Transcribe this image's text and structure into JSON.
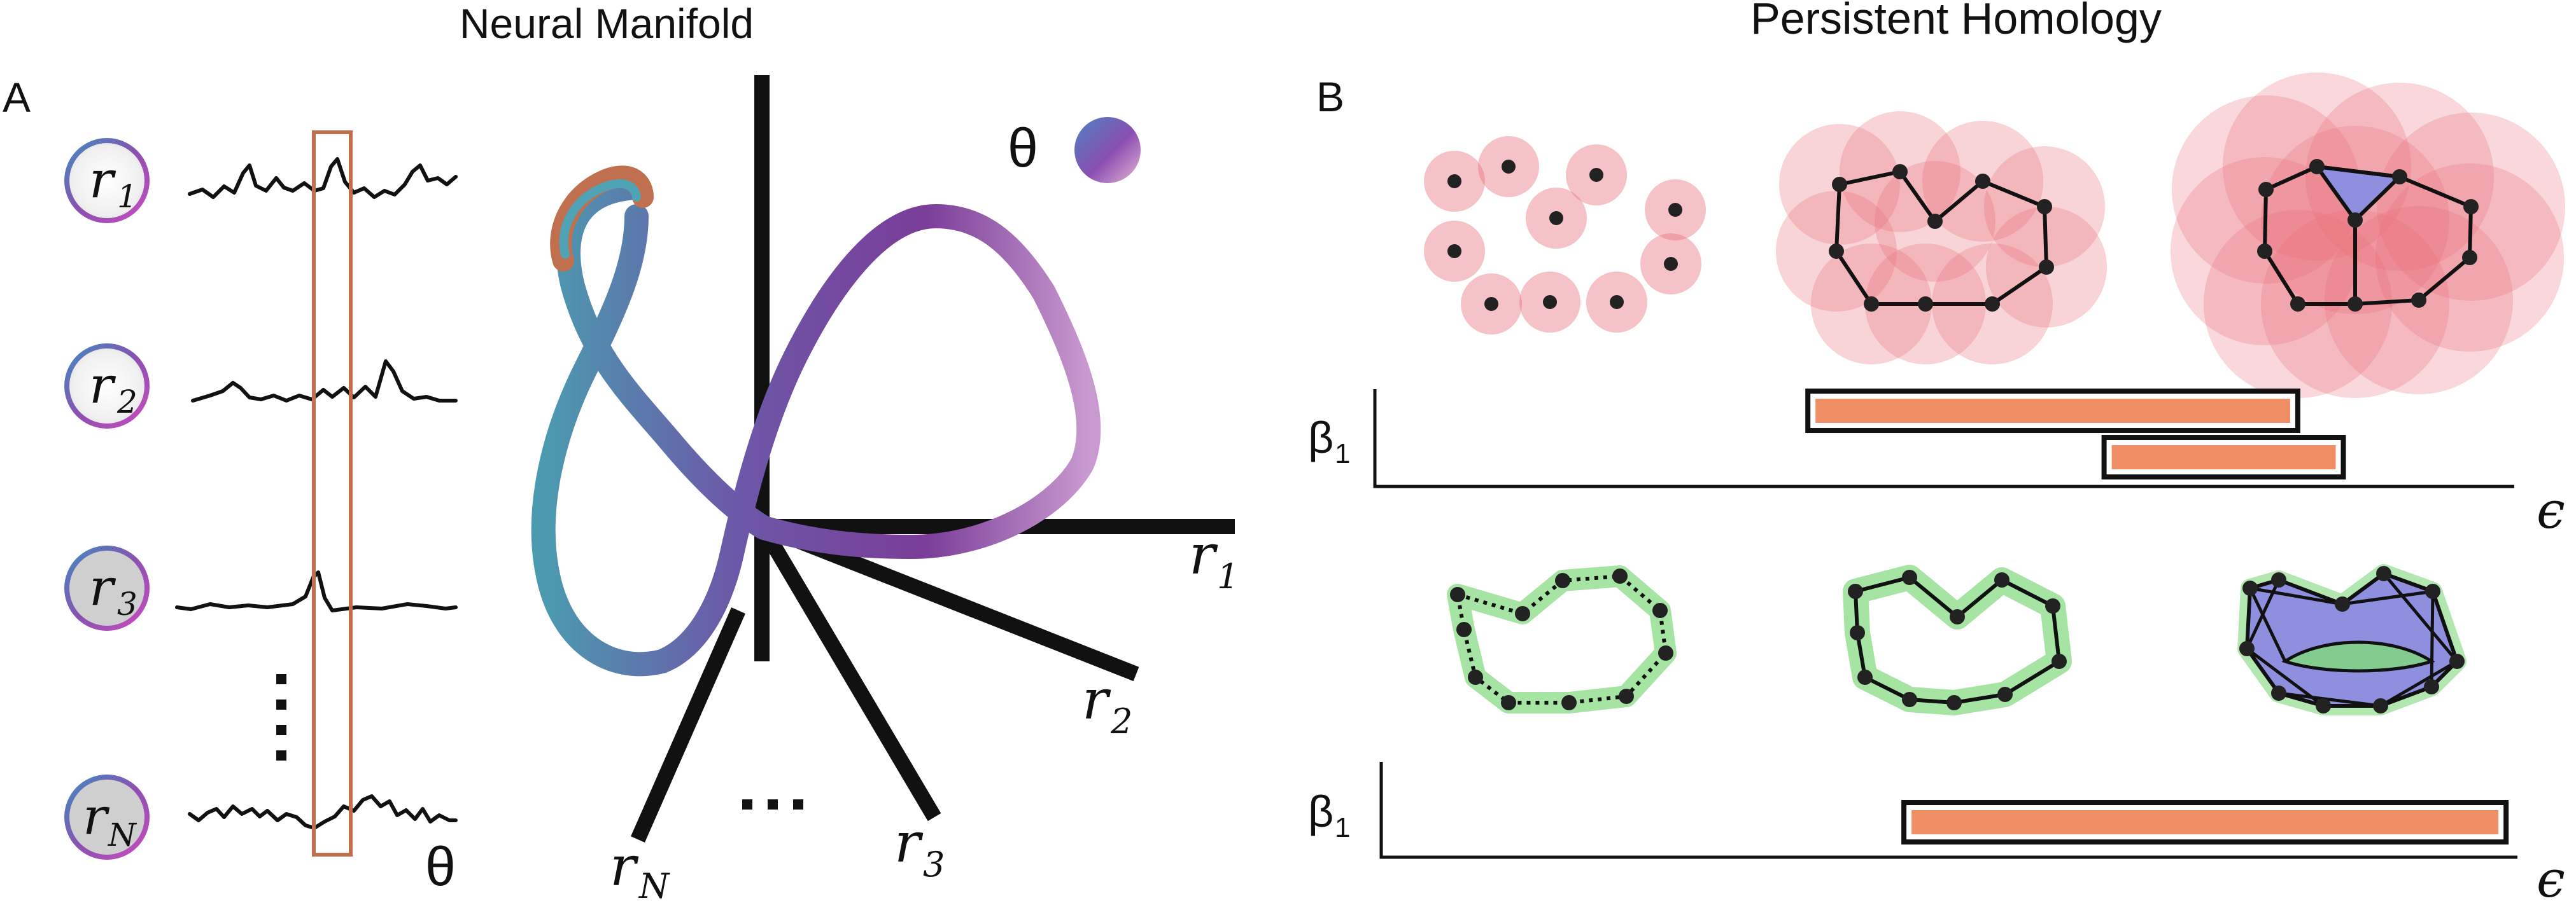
{
  "titles": {
    "left": "Neural Manifold",
    "right": "Persistent Homology"
  },
  "panel_labels": {
    "a": "A",
    "b": "B"
  },
  "neurons": [
    {
      "sym": "r",
      "sub": "1"
    },
    {
      "sym": "r",
      "sub": "2"
    },
    {
      "sym": "r",
      "sub": "3"
    },
    {
      "sym": "r",
      "sub": "N"
    }
  ],
  "theta_label": "θ",
  "theta_legend": "θ",
  "axes": [
    {
      "sym": "r",
      "sub": "1"
    },
    {
      "sym": "r",
      "sub": "2"
    },
    {
      "sym": "r",
      "sub": "3"
    },
    {
      "sym": "r",
      "sub": "N"
    }
  ],
  "barcodes": {
    "betti_sym": "β",
    "betti_sub": "1",
    "epsilon": "ϵ",
    "top_bars": [
      {
        "start": 0.38,
        "end": 0.81
      },
      {
        "start": 0.64,
        "end": 0.85
      }
    ],
    "bottom_bars": [
      {
        "start": 0.46,
        "end": 0.99
      }
    ]
  },
  "colors": {
    "trace_box": "#c0704e",
    "bar_fill": "#f08e66",
    "disk_red": "#e8707a",
    "disk_green": "#7fd97a",
    "simplex_fill": "#8f8fe0",
    "manifold_start": "#4b9bb0",
    "manifold_mid": "#7a4aa0",
    "manifold_end": "#c888c8"
  }
}
